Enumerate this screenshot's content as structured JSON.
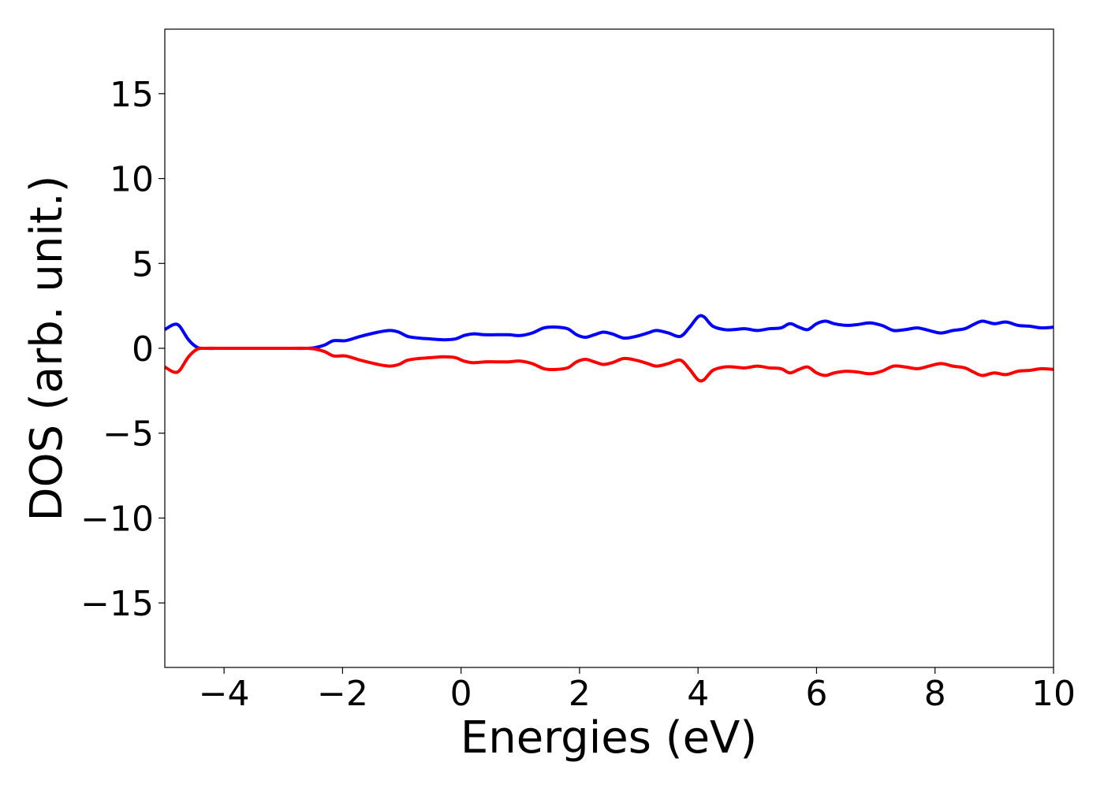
{
  "chart_data": {
    "type": "line",
    "title": "",
    "xlabel": "Energies (eV)",
    "ylabel": "DOS (arb. unit.)",
    "xlim": [
      -5,
      10
    ],
    "ylim": [
      -18.8,
      18.8
    ],
    "x_ticks": [
      -4,
      -2,
      0,
      2,
      4,
      6,
      8,
      10
    ],
    "x_tick_labels": [
      "−4",
      "−2",
      "0",
      "2",
      "4",
      "6",
      "8",
      "10"
    ],
    "y_ticks": [
      15,
      10,
      5,
      0,
      -5,
      -10,
      -15
    ],
    "y_tick_labels": [
      "15",
      "10",
      "5",
      "0",
      "−5",
      "−10",
      "−15"
    ],
    "grid": false,
    "legend": "none",
    "series": [
      {
        "color": "#0000ff",
        "x": [
          -5.0,
          -4.85,
          -4.75,
          -4.6,
          -4.45,
          -4.3,
          -4.0,
          -3.5,
          -3.0,
          -2.6,
          -2.45,
          -2.3,
          -2.15,
          -1.95,
          -1.7,
          -1.4,
          -1.2,
          -1.05,
          -0.9,
          -0.7,
          -0.5,
          -0.3,
          -0.1,
          0.05,
          0.2,
          0.4,
          0.6,
          0.8,
          1.0,
          1.2,
          1.4,
          1.6,
          1.8,
          1.95,
          2.1,
          2.25,
          2.4,
          2.55,
          2.75,
          2.95,
          3.15,
          3.3,
          3.5,
          3.7,
          3.85,
          4.0,
          4.1,
          4.25,
          4.45,
          4.6,
          4.8,
          5.0,
          5.2,
          5.4,
          5.55,
          5.7,
          5.85,
          6.0,
          6.15,
          6.3,
          6.5,
          6.7,
          6.9,
          7.1,
          7.3,
          7.5,
          7.7,
          7.9,
          8.1,
          8.3,
          8.5,
          8.65,
          8.8,
          9.0,
          9.2,
          9.4,
          9.6,
          9.8,
          10.0
        ],
        "y": [
          1.1,
          1.4,
          1.3,
          0.5,
          0.05,
          0.0,
          0.0,
          0.0,
          0.0,
          0.0,
          0.05,
          0.2,
          0.45,
          0.45,
          0.7,
          0.95,
          1.05,
          0.95,
          0.7,
          0.6,
          0.55,
          0.5,
          0.55,
          0.75,
          0.85,
          0.8,
          0.8,
          0.8,
          0.75,
          0.9,
          1.2,
          1.25,
          1.15,
          0.8,
          0.65,
          0.8,
          0.95,
          0.85,
          0.6,
          0.7,
          0.9,
          1.05,
          0.9,
          0.7,
          1.2,
          1.85,
          1.85,
          1.3,
          1.1,
          1.1,
          1.15,
          1.05,
          1.15,
          1.2,
          1.45,
          1.25,
          1.1,
          1.45,
          1.6,
          1.45,
          1.35,
          1.4,
          1.5,
          1.35,
          1.05,
          1.1,
          1.2,
          1.05,
          0.9,
          1.05,
          1.15,
          1.4,
          1.6,
          1.45,
          1.55,
          1.35,
          1.3,
          1.2,
          1.25
        ]
      },
      {
        "color": "#ff0000",
        "x": [
          -5.0,
          -4.85,
          -4.75,
          -4.6,
          -4.45,
          -4.3,
          -4.0,
          -3.5,
          -3.0,
          -2.6,
          -2.45,
          -2.3,
          -2.15,
          -1.95,
          -1.7,
          -1.4,
          -1.2,
          -1.05,
          -0.9,
          -0.7,
          -0.5,
          -0.3,
          -0.1,
          0.05,
          0.2,
          0.4,
          0.6,
          0.8,
          1.0,
          1.2,
          1.4,
          1.6,
          1.8,
          1.95,
          2.1,
          2.25,
          2.4,
          2.55,
          2.75,
          2.95,
          3.15,
          3.3,
          3.5,
          3.7,
          3.85,
          4.0,
          4.1,
          4.25,
          4.45,
          4.6,
          4.8,
          5.0,
          5.2,
          5.4,
          5.55,
          5.7,
          5.85,
          6.0,
          6.15,
          6.3,
          6.5,
          6.7,
          6.9,
          7.1,
          7.3,
          7.5,
          7.7,
          7.9,
          8.1,
          8.3,
          8.5,
          8.65,
          8.8,
          9.0,
          9.2,
          9.4,
          9.6,
          9.8,
          10.0
        ],
        "y": [
          -1.1,
          -1.4,
          -1.3,
          -0.5,
          -0.05,
          0.0,
          0.0,
          0.0,
          0.0,
          0.0,
          -0.05,
          -0.2,
          -0.45,
          -0.45,
          -0.7,
          -0.95,
          -1.05,
          -0.95,
          -0.7,
          -0.6,
          -0.55,
          -0.5,
          -0.55,
          -0.75,
          -0.85,
          -0.8,
          -0.8,
          -0.8,
          -0.75,
          -0.9,
          -1.2,
          -1.25,
          -1.15,
          -0.8,
          -0.65,
          -0.8,
          -0.95,
          -0.85,
          -0.6,
          -0.7,
          -0.9,
          -1.05,
          -0.9,
          -0.7,
          -1.2,
          -1.85,
          -1.85,
          -1.3,
          -1.1,
          -1.1,
          -1.15,
          -1.05,
          -1.15,
          -1.2,
          -1.45,
          -1.25,
          -1.1,
          -1.45,
          -1.6,
          -1.45,
          -1.35,
          -1.4,
          -1.5,
          -1.35,
          -1.05,
          -1.1,
          -1.2,
          -1.05,
          -0.9,
          -1.05,
          -1.15,
          -1.4,
          -1.6,
          -1.45,
          -1.55,
          -1.35,
          -1.3,
          -1.2,
          -1.25
        ]
      }
    ]
  }
}
